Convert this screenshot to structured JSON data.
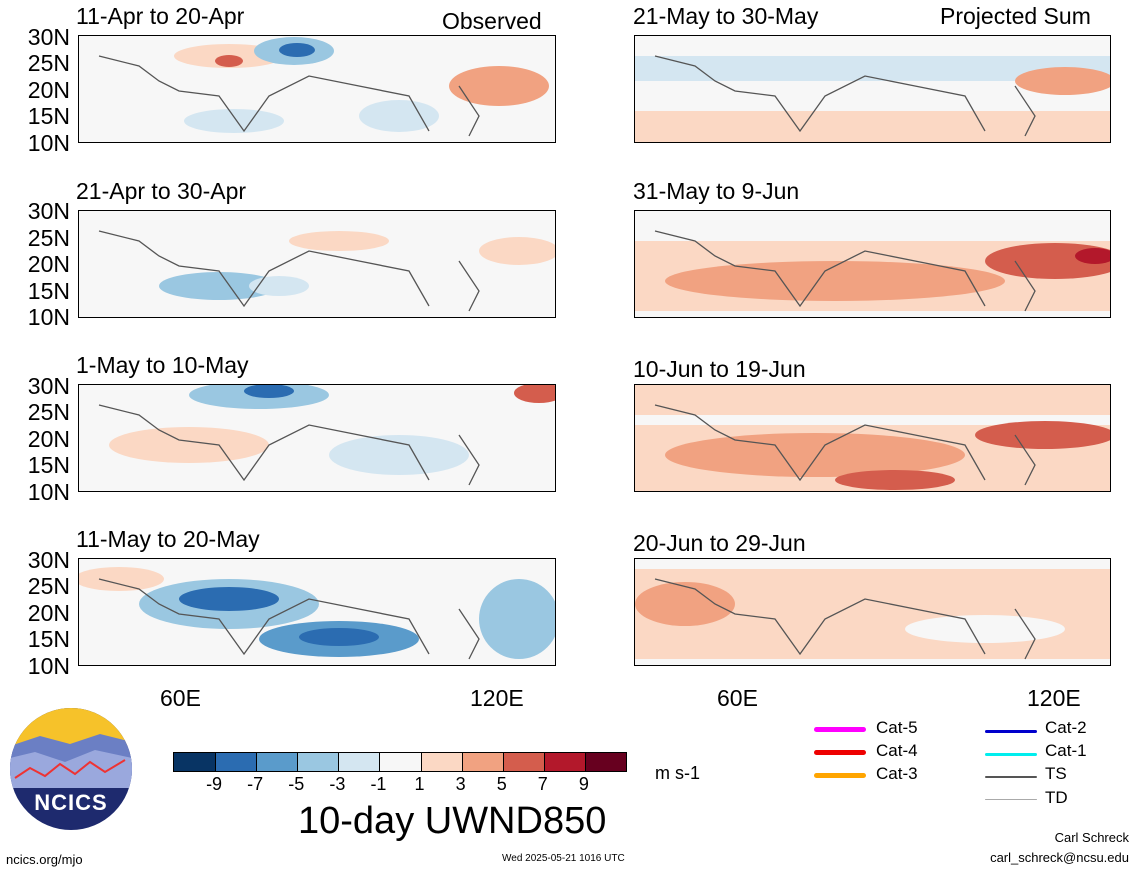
{
  "panels": [
    {
      "title": "11-Apr to 20-Apr",
      "tag": "Observed"
    },
    {
      "title": "21-Apr to 30-Apr",
      "tag": ""
    },
    {
      "title": "1-May to 10-May",
      "tag": ""
    },
    {
      "title": "11-May to 20-May",
      "tag": ""
    },
    {
      "title": "21-May to 30-May",
      "tag": "Projected Sum"
    },
    {
      "title": "31-May to 9-Jun",
      "tag": ""
    },
    {
      "title": "10-Jun to 19-Jun",
      "tag": ""
    },
    {
      "title": "20-Jun to 29-Jun",
      "tag": ""
    }
  ],
  "y_ticks": [
    "30N",
    "25N",
    "20N",
    "15N",
    "10N"
  ],
  "x_ticks": [
    "60E",
    "120E"
  ],
  "colorbar": {
    "labels": [
      "-9",
      "-7",
      "-5",
      "-3",
      "-1",
      "1",
      "3",
      "5",
      "7",
      "9"
    ],
    "colors": [
      "#083464",
      "#2b6cb1",
      "#5a9bcb",
      "#9ac7e1",
      "#d4e6f1",
      "#f7f7f7",
      "#fbd8c4",
      "#f1a281",
      "#d45d4d",
      "#b3182b",
      "#67001f"
    ],
    "units": "m s-1"
  },
  "chart_title": "10-day UWND850",
  "legend": [
    {
      "label": "Cat-5",
      "color": "#ff00ff"
    },
    {
      "label": "Cat-4",
      "color": "#ee0000"
    },
    {
      "label": "Cat-3",
      "color": "#ffa500"
    },
    {
      "label": "Cat-2",
      "color": "#0000cc"
    },
    {
      "label": "Cat-1",
      "color": "#00eeee"
    },
    {
      "label": "TS",
      "color": "#555555"
    },
    {
      "label": "TD",
      "color": "#aaaaaa"
    }
  ],
  "logo_text": "NCICS",
  "footer": {
    "left": "ncics.org/mjo",
    "center": "Wed 2025-05-21 1016 UTC",
    "author": "Carl Schreck",
    "email": "carl_schreck@ncsu.edu"
  }
}
